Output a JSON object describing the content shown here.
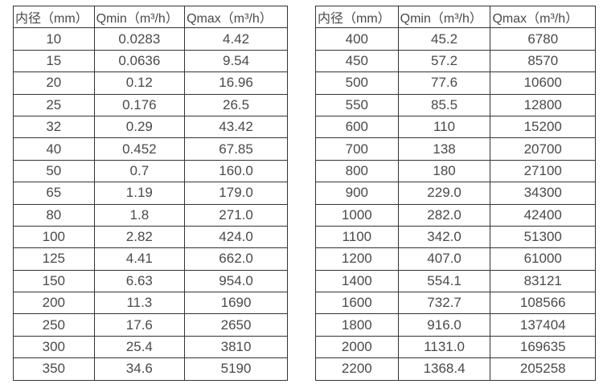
{
  "page": {
    "background_color": "#ffffff",
    "text_color": "#4a4a4a",
    "border_color": "#333333"
  },
  "tables": [
    {
      "name": "flow-table-small-diameters",
      "headers": [
        "内径（mm）",
        "Qmin（m³/h）",
        "Qmax（m³/h）"
      ],
      "rows": [
        [
          "10",
          "0.0283",
          "4.42"
        ],
        [
          "15",
          "0.0636",
          "9.54"
        ],
        [
          "20",
          "0.12",
          "16.96"
        ],
        [
          "25",
          "0.176",
          "26.5"
        ],
        [
          "32",
          "0.29",
          "43.42"
        ],
        [
          "40",
          "0.452",
          "67.85"
        ],
        [
          "50",
          "0.7",
          "160.0"
        ],
        [
          "65",
          "1.19",
          "179.0"
        ],
        [
          "80",
          "1.8",
          "271.0"
        ],
        [
          "100",
          "2.82",
          "424.0"
        ],
        [
          "125",
          "4.41",
          "662.0"
        ],
        [
          "150",
          "6.63",
          "954.0"
        ],
        [
          "200",
          "11.3",
          "1690"
        ],
        [
          "250",
          "17.6",
          "2650"
        ],
        [
          "300",
          "25.4",
          "3810"
        ],
        [
          "350",
          "34.6",
          "5190"
        ]
      ]
    },
    {
      "name": "flow-table-large-diameters",
      "headers": [
        "内径（mm）",
        "Qmin（m³/h）",
        "Qmax（m³/h）"
      ],
      "rows": [
        [
          "400",
          "45.2",
          "6780"
        ],
        [
          "450",
          "57.2",
          "8570"
        ],
        [
          "500",
          "77.6",
          "10600"
        ],
        [
          "550",
          "85.5",
          "12800"
        ],
        [
          "600",
          "110",
          "15200"
        ],
        [
          "700",
          "138",
          "20700"
        ],
        [
          "800",
          "180",
          "27100"
        ],
        [
          "900",
          "229.0",
          "34300"
        ],
        [
          "1000",
          "282.0",
          "42400"
        ],
        [
          "1100",
          "342.0",
          "51300"
        ],
        [
          "1200",
          "407.0",
          "61000"
        ],
        [
          "1400",
          "554.1",
          "83121"
        ],
        [
          "1600",
          "732.7",
          "108566"
        ],
        [
          "1800",
          "916.0",
          "137404"
        ],
        [
          "2000",
          "1131.0",
          "169635"
        ],
        [
          "2200",
          "1368.4",
          "205258"
        ]
      ]
    }
  ]
}
